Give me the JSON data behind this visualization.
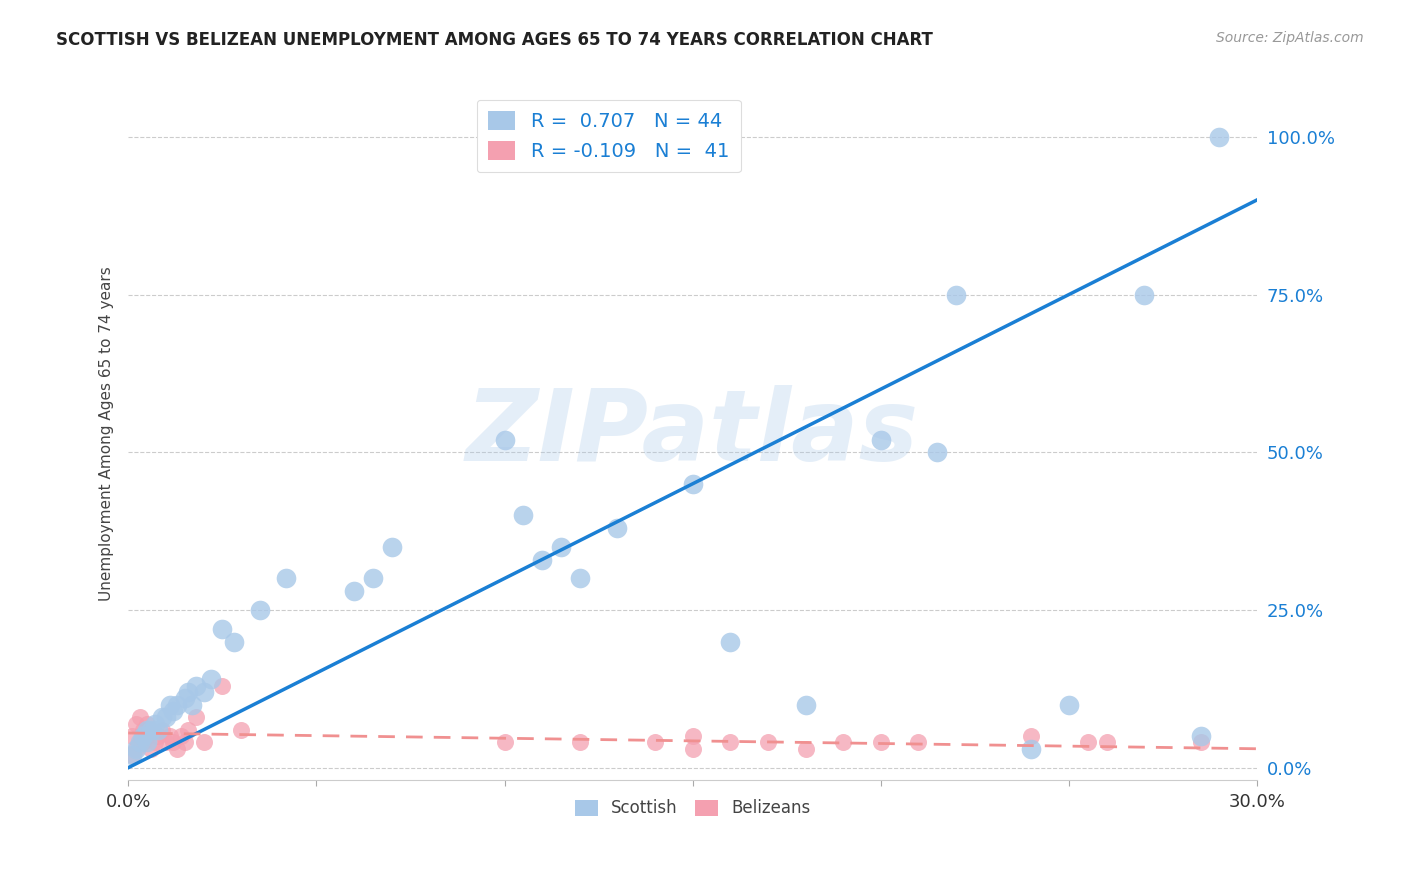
{
  "title": "SCOTTISH VS BELIZEAN UNEMPLOYMENT AMONG AGES 65 TO 74 YEARS CORRELATION CHART",
  "source": "Source: ZipAtlas.com",
  "ylabel": "Unemployment Among Ages 65 to 74 years",
  "xlim": [
    0.0,
    0.3
  ],
  "ylim": [
    -0.02,
    1.08
  ],
  "yticks": [
    0.0,
    0.25,
    0.5,
    0.75,
    1.0
  ],
  "ytick_labels": [
    "0.0%",
    "25.0%",
    "50.0%",
    "75.0%",
    "100.0%"
  ],
  "xticks": [
    0.0,
    0.05,
    0.1,
    0.15,
    0.2,
    0.25,
    0.3
  ],
  "scottish_color": "#a8c8e8",
  "scottish_edge_color": "#7ab0d8",
  "belizean_color": "#f4a0b0",
  "belizean_edge_color": "#e07888",
  "scottish_line_color": "#1a7fd4",
  "belizean_line_color": "#f09090",
  "R_scottish": "0.707",
  "N_scottish": "44",
  "R_belizean": "-0.109",
  "N_belizean": "41",
  "legend_text_color": "#1a7fd4",
  "scottish_x": [
    0.001,
    0.002,
    0.003,
    0.004,
    0.005,
    0.005,
    0.006,
    0.007,
    0.008,
    0.009,
    0.01,
    0.011,
    0.012,
    0.013,
    0.015,
    0.016,
    0.017,
    0.018,
    0.02,
    0.022,
    0.025,
    0.028,
    0.035,
    0.042,
    0.06,
    0.065,
    0.07,
    0.1,
    0.105,
    0.11,
    0.115,
    0.12,
    0.13,
    0.15,
    0.16,
    0.18,
    0.2,
    0.215,
    0.22,
    0.24,
    0.25,
    0.27,
    0.285,
    0.29
  ],
  "scottish_y": [
    0.02,
    0.03,
    0.04,
    0.05,
    0.04,
    0.06,
    0.06,
    0.07,
    0.06,
    0.08,
    0.08,
    0.1,
    0.09,
    0.1,
    0.11,
    0.12,
    0.1,
    0.13,
    0.12,
    0.14,
    0.22,
    0.2,
    0.25,
    0.3,
    0.28,
    0.3,
    0.35,
    0.52,
    0.4,
    0.33,
    0.35,
    0.3,
    0.38,
    0.45,
    0.2,
    0.1,
    0.52,
    0.5,
    0.75,
    0.03,
    0.1,
    0.75,
    0.05,
    1.0
  ],
  "belizean_x": [
    0.001,
    0.001,
    0.002,
    0.002,
    0.003,
    0.003,
    0.004,
    0.004,
    0.005,
    0.005,
    0.006,
    0.006,
    0.007,
    0.008,
    0.009,
    0.01,
    0.011,
    0.012,
    0.013,
    0.014,
    0.015,
    0.016,
    0.018,
    0.02,
    0.025,
    0.03,
    0.1,
    0.12,
    0.14,
    0.15,
    0.16,
    0.17,
    0.18,
    0.19,
    0.2,
    0.15,
    0.21,
    0.24,
    0.255,
    0.26,
    0.285
  ],
  "belizean_y": [
    0.02,
    0.05,
    0.03,
    0.07,
    0.04,
    0.08,
    0.04,
    0.06,
    0.05,
    0.07,
    0.03,
    0.06,
    0.04,
    0.05,
    0.06,
    0.04,
    0.05,
    0.04,
    0.03,
    0.05,
    0.04,
    0.06,
    0.08,
    0.04,
    0.13,
    0.06,
    0.04,
    0.04,
    0.04,
    0.03,
    0.04,
    0.04,
    0.03,
    0.04,
    0.04,
    0.05,
    0.04,
    0.05,
    0.04,
    0.04,
    0.04
  ],
  "scottish_line_x": [
    0.0,
    0.3
  ],
  "scottish_line_y": [
    0.0,
    0.9
  ],
  "belizean_line_x": [
    0.0,
    0.3
  ],
  "belizean_line_y": [
    0.055,
    0.03
  ],
  "watermark": "ZIPatlas",
  "background_color": "#ffffff",
  "grid_color": "#cccccc"
}
